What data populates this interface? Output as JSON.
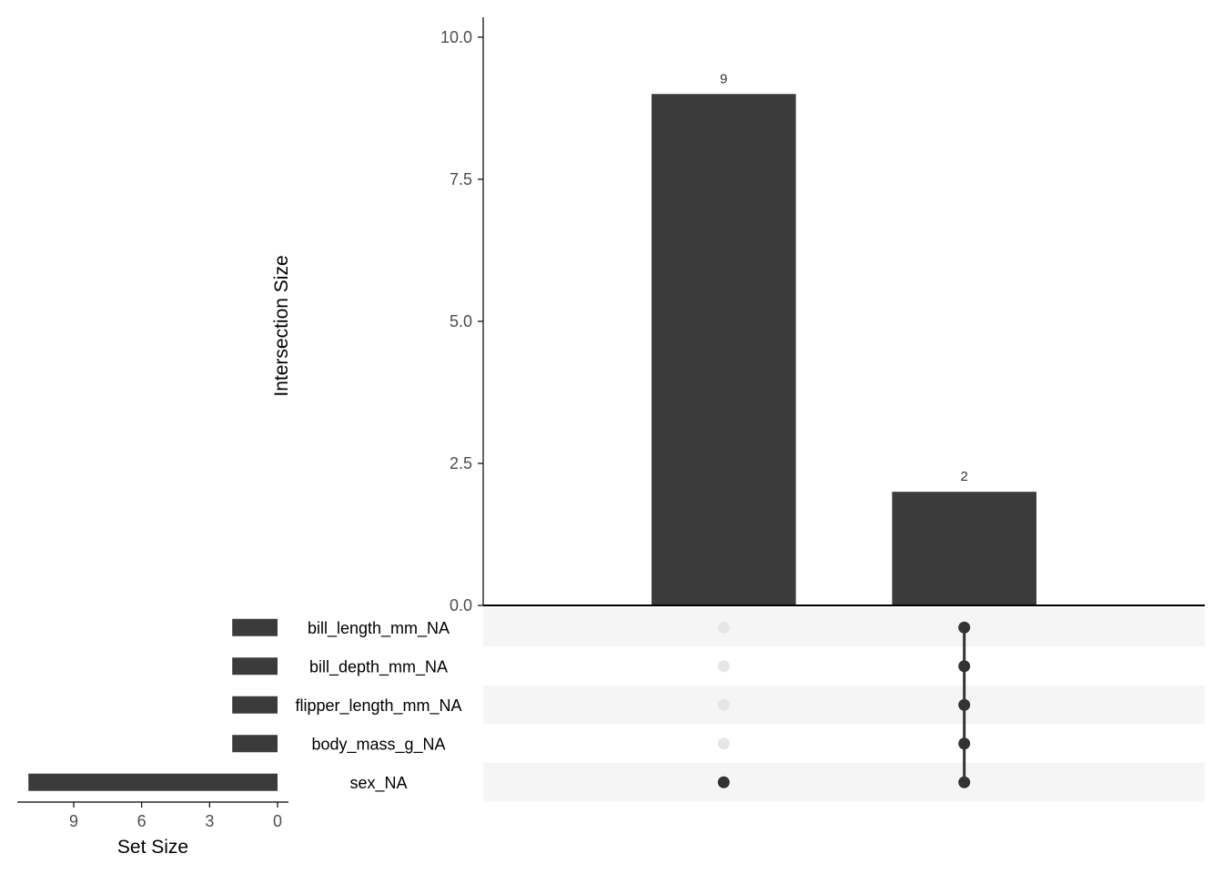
{
  "chart_data": {
    "type": "upset",
    "colors": {
      "bar": "#3b3b3b",
      "dot_active": "#333333",
      "dot_inactive": "#e6e6e6",
      "stripe": "#f5f5f5",
      "axis": "#000000"
    },
    "sets": [
      "bill_length_mm_NA",
      "bill_depth_mm_NA",
      "flipper_length_mm_NA",
      "body_mass_g_NA",
      "sex_NA"
    ],
    "intersection_size": {
      "ylabel": "Intersection Size",
      "ylim": [
        0,
        10.35
      ],
      "ticks": [
        0,
        2.5,
        5,
        7.5,
        10
      ],
      "tick_labels": [
        "0.0",
        "2.5",
        "5.0",
        "7.5",
        "10.0"
      ],
      "intersections": [
        {
          "sets": [
            "sex_NA"
          ],
          "value": 9,
          "label": "9"
        },
        {
          "sets": [
            "bill_length_mm_NA",
            "bill_depth_mm_NA",
            "flipper_length_mm_NA",
            "body_mass_g_NA",
            "sex_NA"
          ],
          "value": 2,
          "label": "2"
        }
      ]
    },
    "set_size": {
      "xlabel": "Set Size",
      "xlim": [
        11.1,
        0
      ],
      "ticks": [
        9,
        6,
        3,
        0
      ],
      "tick_labels": [
        "9",
        "6",
        "3",
        "0"
      ],
      "values": [
        2,
        2,
        2,
        2,
        11
      ]
    }
  }
}
